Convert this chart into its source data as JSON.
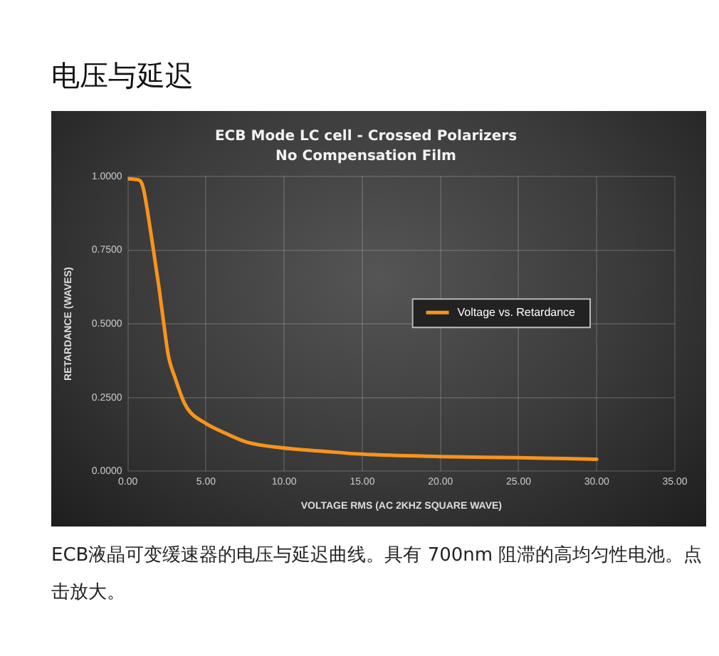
{
  "chart_data": {
    "type": "line",
    "title": "ECB Mode LC cell - Crossed Polarizers",
    "subtitle": "No Compensation Film",
    "xlabel": "VOLTAGE RMS (AC 2KHZ SQUARE WAVE)",
    "ylabel": "RETARDANCE (WAVES)",
    "annotations": [
      "电压与延迟",
      "ECB液晶可变缓速器的电压与延迟曲线。具有 700nm 阻滞的高均匀性电池。点击放大。"
    ],
    "series": [
      {
        "name": "Voltage vs. Retardance",
        "color": "#f7941d",
        "x": [
          0,
          0.5,
          0.8,
          1.0,
          1.2,
          1.54,
          2.0,
          2.3,
          2.6,
          3.0,
          3.6,
          4.0,
          5.0,
          6.0,
          7.6,
          9.8,
          12.5,
          15,
          20,
          25,
          30
        ],
        "values": [
          0.992,
          0.99,
          0.985,
          0.957,
          0.9,
          0.784,
          0.62,
          0.5,
          0.39,
          0.32,
          0.233,
          0.2,
          0.162,
          0.135,
          0.099,
          0.08,
          0.068,
          0.058,
          0.05,
          0.046,
          0.041
        ]
      }
    ],
    "xlim": [
      0,
      35
    ],
    "xticks": [
      {
        "value": 0,
        "label": "0.00"
      },
      {
        "value": 5,
        "label": "5.00"
      },
      {
        "value": 10,
        "label": "10.00"
      },
      {
        "value": 15,
        "label": "15.00"
      },
      {
        "value": 20,
        "label": "20.00"
      },
      {
        "value": 25,
        "label": "25.00"
      },
      {
        "value": 30,
        "label": "30.00"
      },
      {
        "value": 35,
        "label": "35.00"
      }
    ],
    "ylim": [
      0,
      1
    ],
    "yticks": [
      {
        "value": 0,
        "label": "0.0000"
      },
      {
        "value": 0.25,
        "label": "0.2500"
      },
      {
        "value": 0.5,
        "label": "0.5000"
      },
      {
        "value": 0.75,
        "label": "0.7500"
      },
      {
        "value": 1,
        "label": "1.0000"
      }
    ],
    "grid": true,
    "legend": "right",
    "marker": "none",
    "line_style": "solid"
  }
}
